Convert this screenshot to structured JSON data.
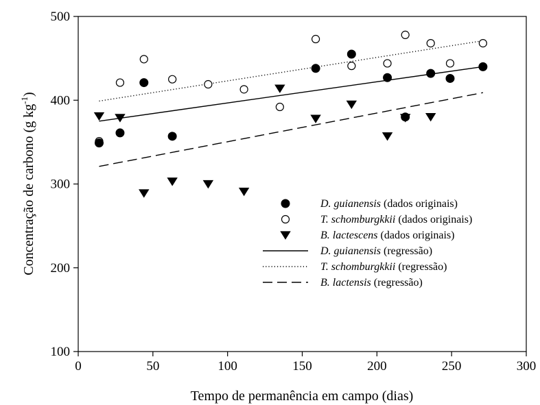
{
  "chart_data": {
    "type": "scatter",
    "xlabel": "Tempo de permanência em campo (dias)",
    "ylabel": {
      "main": "Concentração de carbono (g kg",
      "sup": "-1",
      "close": ")"
    },
    "xlim": [
      0,
      300
    ],
    "ylim": [
      100,
      500
    ],
    "x_ticks": [
      0,
      50,
      100,
      150,
      200,
      250,
      300
    ],
    "y_ticks": [
      100,
      200,
      300,
      400,
      500
    ],
    "grid": false,
    "legend_position": "center-right",
    "series": [
      {
        "name": "D. guianensis",
        "suffix": " (dados originais)",
        "kind": "points",
        "marker": "filled-circle",
        "points": [
          [
            14,
            349
          ],
          [
            28,
            361
          ],
          [
            44,
            421
          ],
          [
            63,
            357
          ],
          [
            159,
            438
          ],
          [
            183,
            455
          ],
          [
            207,
            427
          ],
          [
            219,
            380
          ],
          [
            236,
            432
          ],
          [
            249,
            426
          ],
          [
            271,
            440
          ]
        ]
      },
      {
        "name": "T. schomburgkkii",
        "suffix": " (dados originais)",
        "kind": "points",
        "marker": "open-circle",
        "points": [
          [
            14,
            351
          ],
          [
            28,
            421
          ],
          [
            44,
            449
          ],
          [
            63,
            425
          ],
          [
            87,
            419
          ],
          [
            111,
            413
          ],
          [
            135,
            392
          ],
          [
            159,
            473
          ],
          [
            183,
            441
          ],
          [
            207,
            444
          ],
          [
            219,
            478
          ],
          [
            236,
            468
          ],
          [
            249,
            444
          ],
          [
            271,
            468
          ]
        ]
      },
      {
        "name": "B. lactescens",
        "suffix": " (dados originais)",
        "kind": "points",
        "marker": "filled-triangle-down",
        "points": [
          [
            14,
            381
          ],
          [
            28,
            379
          ],
          [
            44,
            289
          ],
          [
            63,
            303
          ],
          [
            87,
            300
          ],
          [
            111,
            291
          ],
          [
            135,
            414
          ],
          [
            159,
            378
          ],
          [
            183,
            395
          ],
          [
            207,
            357
          ],
          [
            219,
            379
          ],
          [
            236,
            380
          ]
        ]
      },
      {
        "name": "D. guianensis",
        "suffix": " (regressão)",
        "kind": "line",
        "dash": "solid",
        "line": [
          [
            14,
            375
          ],
          [
            271,
            440
          ]
        ]
      },
      {
        "name": "T. schomburgkkii",
        "suffix": " (regressão)",
        "kind": "line",
        "dash": "dotted",
        "line": [
          [
            14,
            399
          ],
          [
            271,
            471
          ]
        ]
      },
      {
        "name": "B. lactensis",
        "suffix": " (regressão)",
        "kind": "line",
        "dash": "dashed",
        "line": [
          [
            14,
            321
          ],
          [
            271,
            409
          ]
        ]
      }
    ]
  }
}
